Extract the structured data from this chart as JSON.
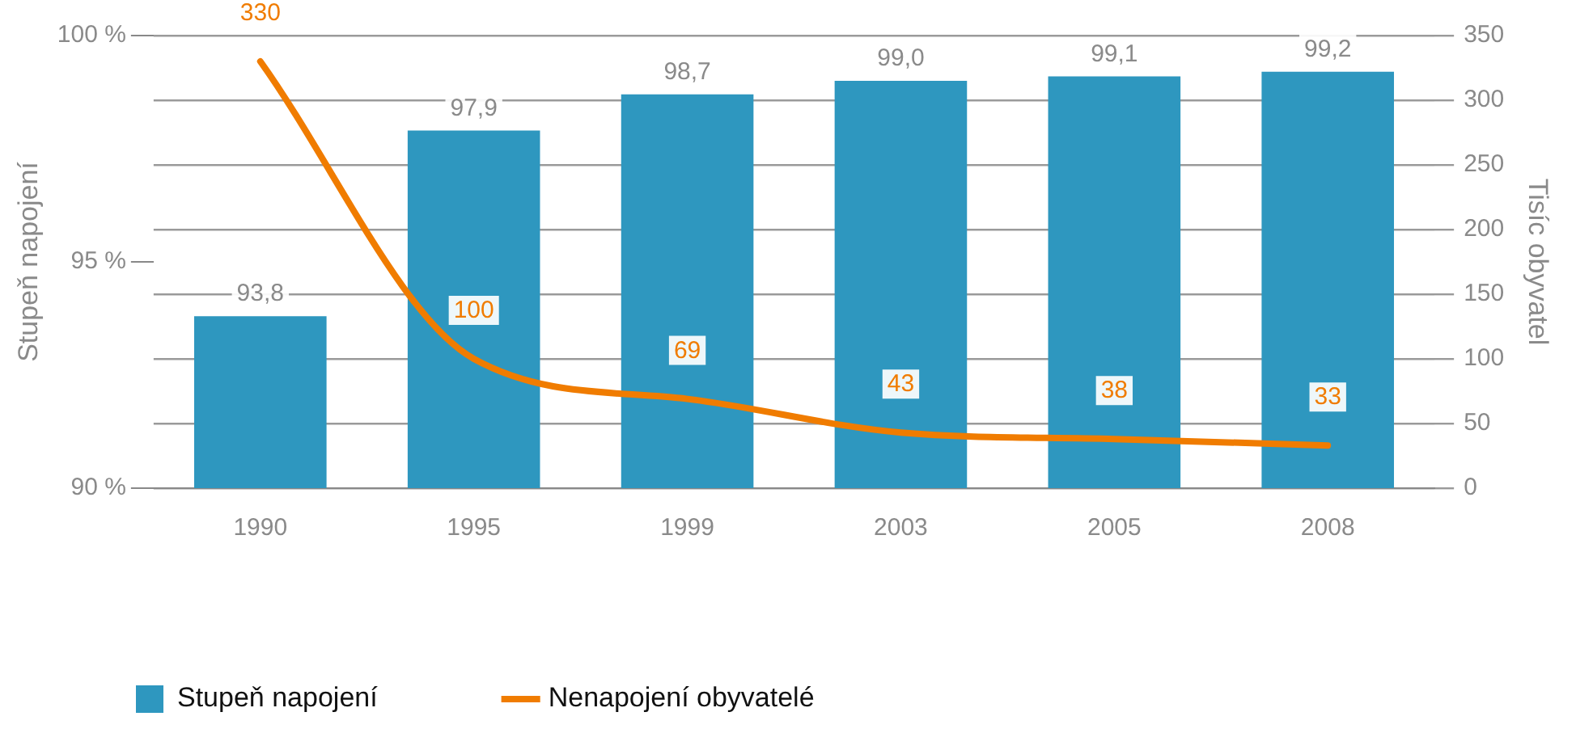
{
  "chart_data": {
    "type": "bar",
    "categories": [
      "1990",
      "1995",
      "1999",
      "2003",
      "2005",
      "2008"
    ],
    "series": [
      {
        "name": "Stupeň napojení",
        "color": "#2e97bf",
        "values": [
          93.8,
          97.9,
          98.7,
          99.0,
          99.1,
          99.2
        ],
        "value_labels": [
          "93,8",
          "97,9",
          "98,7",
          "99,0",
          "99,1",
          "99,2"
        ]
      },
      {
        "name": "Nenapojení obyvatelé",
        "type": "line",
        "axis": "y2",
        "color": "#f07c00",
        "values": [
          330,
          100,
          69,
          43,
          38,
          33
        ],
        "value_labels": [
          "330",
          "100",
          "69",
          "43",
          "38",
          "33"
        ]
      }
    ],
    "ylabel": "Stupeň napojení",
    "y2label": "Tisíc obyvatel",
    "ylim": [
      90,
      100
    ],
    "yticks": [
      {
        "value": 90,
        "label": "90 %"
      },
      {
        "value": 95,
        "label": "95 %"
      },
      {
        "value": 100,
        "label": "100 %"
      }
    ],
    "y2lim": [
      0,
      350
    ],
    "y2ticks": [
      0,
      50,
      100,
      150,
      200,
      250,
      300,
      350
    ],
    "grid": "y",
    "legend": "bottom left",
    "marker": "none",
    "line_style": "solid"
  }
}
